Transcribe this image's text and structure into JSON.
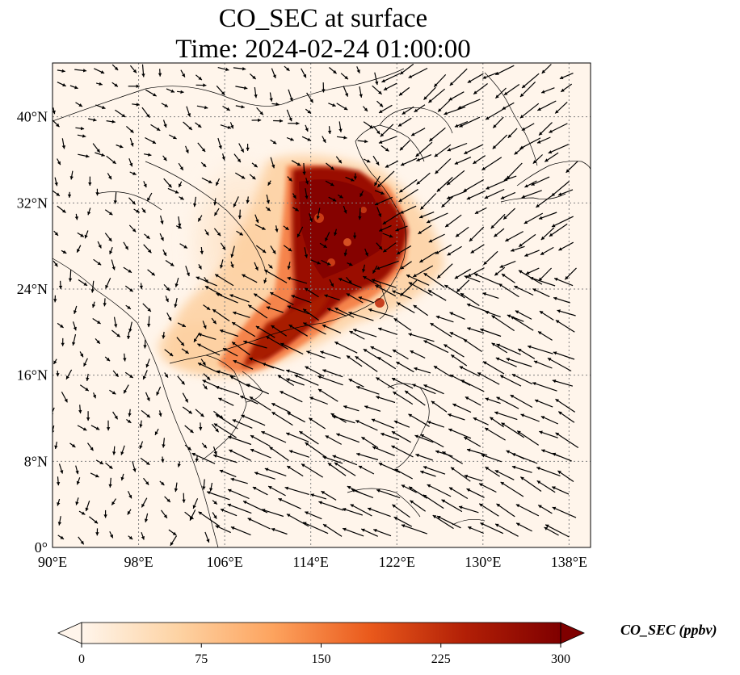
{
  "title": "CO_SEC at surface",
  "subtitle": "Time: 2024-02-24 01:00:00",
  "map": {
    "lon_range": [
      90,
      140
    ],
    "lat_range": [
      0,
      45
    ],
    "lon_ticks": [
      {
        "value": 90,
        "label": "90°E"
      },
      {
        "value": 98,
        "label": "98°E"
      },
      {
        "value": 106,
        "label": "106°E"
      },
      {
        "value": 114,
        "label": "114°E"
      },
      {
        "value": 122,
        "label": "122°E"
      },
      {
        "value": 130,
        "label": "130°E"
      },
      {
        "value": 138,
        "label": "138°E"
      }
    ],
    "lat_ticks": [
      {
        "value": 0,
        "label": "0°"
      },
      {
        "value": 8,
        "label": "8°N"
      },
      {
        "value": 16,
        "label": "16°N"
      },
      {
        "value": 24,
        "label": "24°N"
      },
      {
        "value": 32,
        "label": "32°N"
      },
      {
        "value": 40,
        "label": "40°N"
      }
    ],
    "gridlines": true,
    "background_color": "#fff5eb",
    "coastline_color": "#000000",
    "wind_vectors": "black quiver arrows"
  },
  "colorbar": {
    "label": "CO_SEC (ppbv)",
    "min": 0,
    "max": 300,
    "extend": "both",
    "colormap": "OrRd",
    "ticks": [
      {
        "value": 0,
        "label": "0"
      },
      {
        "value": 75,
        "label": "75"
      },
      {
        "value": 150,
        "label": "150"
      },
      {
        "value": 225,
        "label": "225"
      },
      {
        "value": 300,
        "label": "300"
      }
    ],
    "colors": [
      "#fff5eb",
      "#fdd3a4",
      "#fda35e",
      "#ea5a1c",
      "#b21f06",
      "#7f0000"
    ]
  }
}
